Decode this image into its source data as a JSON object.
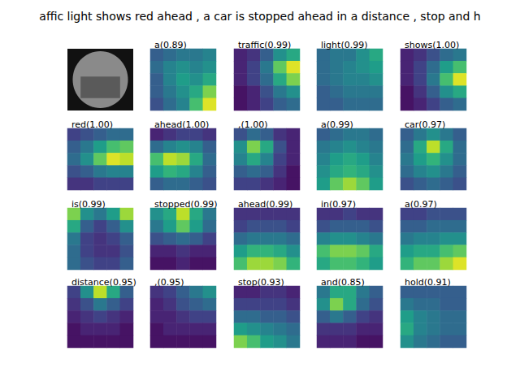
{
  "title": "affic light shows red ahead , a car is stopped ahead in a distance , stop and h",
  "color_range": [
    0,
    1
  ],
  "chart_data": [
    {
      "type": "image"
    },
    {
      "type": "heatmap",
      "title": "a(0.89)",
      "tick_labels": false,
      "cells": [
        [
          0.3,
          0.35,
          0.4,
          0.4,
          0.45
        ],
        [
          0.35,
          0.45,
          0.5,
          0.45,
          0.5
        ],
        [
          0.3,
          0.45,
          0.55,
          0.5,
          0.6
        ],
        [
          0.3,
          0.4,
          0.5,
          0.6,
          0.8
        ],
        [
          0.25,
          0.35,
          0.45,
          0.7,
          0.95
        ]
      ]
    },
    {
      "type": "heatmap",
      "title": "traffic(0.99)",
      "tick_labels": false,
      "cells": [
        [
          0.1,
          0.15,
          0.3,
          0.5,
          0.6
        ],
        [
          0.1,
          0.2,
          0.4,
          0.75,
          0.95
        ],
        [
          0.1,
          0.2,
          0.35,
          0.6,
          0.8
        ],
        [
          0.05,
          0.1,
          0.25,
          0.4,
          0.5
        ],
        [
          0.05,
          0.1,
          0.2,
          0.3,
          0.35
        ]
      ]
    },
    {
      "type": "heatmap",
      "title": "light(0.99)",
      "tick_labels": false,
      "cells": [
        [
          0.35,
          0.4,
          0.4,
          0.5,
          0.6
        ],
        [
          0.35,
          0.4,
          0.45,
          0.5,
          0.55
        ],
        [
          0.35,
          0.4,
          0.45,
          0.45,
          0.5
        ],
        [
          0.3,
          0.35,
          0.4,
          0.4,
          0.4
        ],
        [
          0.3,
          0.3,
          0.35,
          0.35,
          0.35
        ]
      ]
    },
    {
      "type": "heatmap",
      "title": "shows(1.00)",
      "tick_labels": false,
      "cells": [
        [
          0.1,
          0.15,
          0.25,
          0.35,
          0.4
        ],
        [
          0.1,
          0.2,
          0.35,
          0.55,
          0.7
        ],
        [
          0.1,
          0.2,
          0.4,
          0.7,
          0.95
        ],
        [
          0.05,
          0.15,
          0.3,
          0.5,
          0.6
        ],
        [
          0.05,
          0.1,
          0.2,
          0.3,
          0.35
        ]
      ]
    },
    {
      "type": "heatmap",
      "title": "red(1.00)",
      "tick_labels": false,
      "cells": [
        [
          0.2,
          0.25,
          0.3,
          0.35,
          0.35
        ],
        [
          0.3,
          0.4,
          0.55,
          0.7,
          0.75
        ],
        [
          0.35,
          0.5,
          0.75,
          0.95,
          0.9
        ],
        [
          0.25,
          0.3,
          0.4,
          0.45,
          0.45
        ],
        [
          0.15,
          0.15,
          0.2,
          0.2,
          0.2
        ]
      ]
    },
    {
      "type": "heatmap",
      "title": "ahead(1.00)",
      "tick_labels": false,
      "cells": [
        [
          0.1,
          0.15,
          0.2,
          0.2,
          0.15
        ],
        [
          0.35,
          0.45,
          0.5,
          0.45,
          0.3
        ],
        [
          0.7,
          0.9,
          0.85,
          0.6,
          0.35
        ],
        [
          0.55,
          0.65,
          0.6,
          0.45,
          0.3
        ],
        [
          0.3,
          0.35,
          0.35,
          0.3,
          0.25
        ]
      ]
    },
    {
      "type": "heatmap",
      "title": ",(1.00)",
      "tick_labels": false,
      "cells": [
        [
          0.25,
          0.35,
          0.3,
          0.15,
          0.1
        ],
        [
          0.5,
          0.8,
          0.6,
          0.25,
          0.1
        ],
        [
          0.45,
          0.6,
          0.45,
          0.2,
          0.1
        ],
        [
          0.3,
          0.35,
          0.3,
          0.15,
          0.05
        ],
        [
          0.2,
          0.2,
          0.15,
          0.1,
          0.05
        ]
      ]
    },
    {
      "type": "heatmap",
      "title": "a(0.99)",
      "tick_labels": false,
      "cells": [
        [
          0.3,
          0.35,
          0.4,
          0.4,
          0.35
        ],
        [
          0.4,
          0.45,
          0.5,
          0.45,
          0.4
        ],
        [
          0.45,
          0.55,
          0.6,
          0.55,
          0.45
        ],
        [
          0.5,
          0.6,
          0.65,
          0.6,
          0.5
        ],
        [
          0.55,
          0.75,
          0.85,
          0.75,
          0.55
        ]
      ]
    },
    {
      "type": "heatmap",
      "title": "car(0.97)",
      "tick_labels": false,
      "cells": [
        [
          0.3,
          0.4,
          0.5,
          0.4,
          0.3
        ],
        [
          0.35,
          0.6,
          0.9,
          0.6,
          0.35
        ],
        [
          0.4,
          0.55,
          0.65,
          0.5,
          0.35
        ],
        [
          0.35,
          0.45,
          0.5,
          0.4,
          0.3
        ],
        [
          0.25,
          0.3,
          0.35,
          0.3,
          0.25
        ]
      ]
    },
    {
      "type": "heatmap",
      "title": "is(0.99)",
      "tick_labels": false,
      "cells": [
        [
          0.8,
          0.5,
          0.4,
          0.55,
          0.85
        ],
        [
          0.6,
          0.3,
          0.2,
          0.3,
          0.5
        ],
        [
          0.4,
          0.2,
          0.15,
          0.2,
          0.3
        ],
        [
          0.35,
          0.2,
          0.15,
          0.15,
          0.25
        ],
        [
          0.35,
          0.25,
          0.2,
          0.2,
          0.3
        ]
      ]
    },
    {
      "type": "heatmap",
      "title": "stopped(0.99)",
      "tick_labels": false,
      "cells": [
        [
          0.5,
          0.6,
          0.9,
          0.6,
          0.4
        ],
        [
          0.4,
          0.55,
          0.75,
          0.55,
          0.35
        ],
        [
          0.25,
          0.3,
          0.35,
          0.3,
          0.2
        ],
        [
          0.1,
          0.1,
          0.15,
          0.1,
          0.1
        ],
        [
          0.05,
          0.05,
          0.1,
          0.05,
          0.05
        ]
      ]
    },
    {
      "type": "heatmap",
      "title": "ahead(0.99)",
      "tick_labels": false,
      "cells": [
        [
          0.15,
          0.15,
          0.15,
          0.15,
          0.15
        ],
        [
          0.2,
          0.25,
          0.25,
          0.25,
          0.2
        ],
        [
          0.35,
          0.4,
          0.4,
          0.4,
          0.35
        ],
        [
          0.55,
          0.65,
          0.65,
          0.6,
          0.5
        ],
        [
          0.7,
          0.85,
          0.85,
          0.8,
          0.65
        ]
      ]
    },
    {
      "type": "heatmap",
      "title": "in(0.97)",
      "tick_labels": false,
      "cells": [
        [
          0.15,
          0.15,
          0.2,
          0.15,
          0.15
        ],
        [
          0.25,
          0.3,
          0.3,
          0.3,
          0.25
        ],
        [
          0.45,
          0.5,
          0.5,
          0.45,
          0.4
        ],
        [
          0.7,
          0.8,
          0.8,
          0.75,
          0.6
        ],
        [
          0.6,
          0.7,
          0.7,
          0.65,
          0.55
        ]
      ]
    },
    {
      "type": "heatmap",
      "title": "a(0.97)",
      "tick_labels": false,
      "cells": [
        [
          0.2,
          0.2,
          0.25,
          0.25,
          0.25
        ],
        [
          0.3,
          0.3,
          0.35,
          0.35,
          0.35
        ],
        [
          0.4,
          0.45,
          0.45,
          0.5,
          0.5
        ],
        [
          0.55,
          0.6,
          0.6,
          0.7,
          0.75
        ],
        [
          0.65,
          0.75,
          0.75,
          0.85,
          0.95
        ]
      ]
    },
    {
      "type": "heatmap",
      "title": "distance(0.95)",
      "tick_labels": false,
      "cells": [
        [
          0.2,
          0.5,
          0.9,
          0.6,
          0.3
        ],
        [
          0.15,
          0.25,
          0.4,
          0.3,
          0.2
        ],
        [
          0.1,
          0.15,
          0.2,
          0.15,
          0.1
        ],
        [
          0.05,
          0.1,
          0.1,
          0.1,
          0.05
        ],
        [
          0.05,
          0.05,
          0.05,
          0.05,
          0.05
        ]
      ]
    },
    {
      "type": "heatmap",
      "title": ",(0.95)",
      "tick_labels": false,
      "cells": [
        [
          0.15,
          0.2,
          0.3,
          0.4,
          0.5
        ],
        [
          0.1,
          0.15,
          0.25,
          0.3,
          0.35
        ],
        [
          0.1,
          0.1,
          0.15,
          0.2,
          0.2
        ],
        [
          0.05,
          0.1,
          0.1,
          0.1,
          0.1
        ],
        [
          0.05,
          0.05,
          0.05,
          0.05,
          0.05
        ]
      ]
    },
    {
      "type": "heatmap",
      "title": "stop(0.93)",
      "tick_labels": false,
      "cells": [
        [
          0.1,
          0.1,
          0.15,
          0.15,
          0.1
        ],
        [
          0.2,
          0.2,
          0.2,
          0.2,
          0.15
        ],
        [
          0.35,
          0.35,
          0.3,
          0.3,
          0.25
        ],
        [
          0.55,
          0.5,
          0.45,
          0.4,
          0.35
        ],
        [
          0.8,
          0.7,
          0.55,
          0.5,
          0.4
        ]
      ]
    },
    {
      "type": "heatmap",
      "title": "and(0.85)",
      "tick_labels": false,
      "cells": [
        [
          0.4,
          0.6,
          0.6,
          0.4,
          0.3
        ],
        [
          0.5,
          0.8,
          0.6,
          0.35,
          0.25
        ],
        [
          0.3,
          0.4,
          0.3,
          0.2,
          0.15
        ],
        [
          0.15,
          0.15,
          0.15,
          0.1,
          0.1
        ],
        [
          0.1,
          0.1,
          0.1,
          0.05,
          0.05
        ]
      ]
    },
    {
      "type": "heatmap",
      "title": "hold(0.91)",
      "tick_labels": false,
      "cells": [
        [
          0.3,
          0.3,
          0.3,
          0.3,
          0.3
        ],
        [
          0.4,
          0.35,
          0.35,
          0.3,
          0.3
        ],
        [
          0.55,
          0.45,
          0.4,
          0.35,
          0.35
        ],
        [
          0.6,
          0.45,
          0.4,
          0.35,
          0.35
        ],
        [
          0.5,
          0.4,
          0.35,
          0.3,
          0.3
        ]
      ]
    }
  ]
}
